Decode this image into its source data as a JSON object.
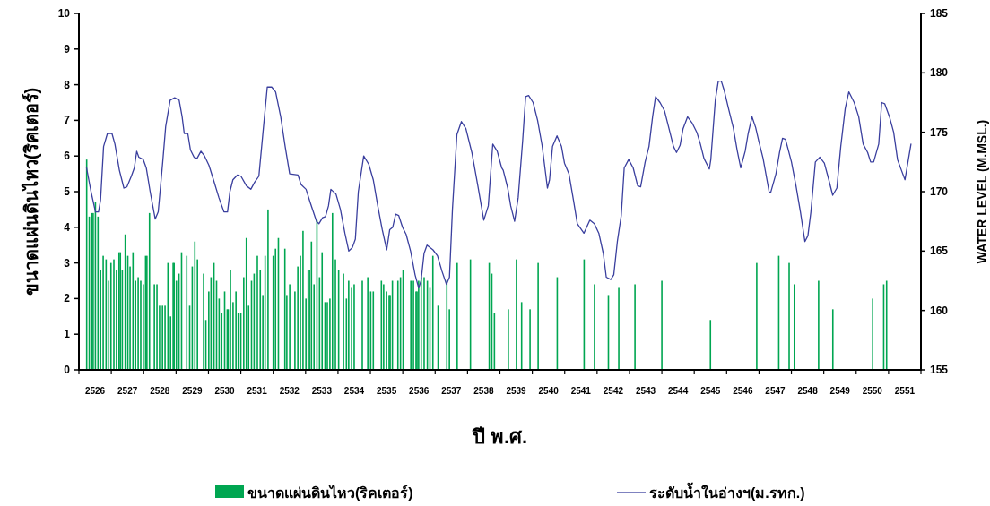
{
  "chart_data": {
    "type": "bar",
    "xlabel": "ปี พ.ศ.",
    "ylabel": "ขนาดแผ่นดินไหว(ริคเตอร์)",
    "y2label": "WATER LEVEL (M.MSL.)",
    "legend": "bottom",
    "xlim": [
      2525.5,
      2551.5
    ],
    "xticks": [
      {
        "value": 2525.5,
        "label": null
      },
      2526,
      {
        "value": 2526.5,
        "label": null
      },
      2527,
      {
        "value": 2527.5,
        "label": null
      },
      2528,
      {
        "value": 2528.5,
        "label": null
      },
      2529,
      {
        "value": 2529.5,
        "label": null
      },
      2530,
      {
        "value": 2530.5,
        "label": null
      },
      2531,
      {
        "value": 2531.5,
        "label": null
      },
      2532,
      {
        "value": 2532.5,
        "label": null
      },
      2533,
      {
        "value": 2533.5,
        "label": null
      },
      2534,
      {
        "value": 2534.5,
        "label": null
      },
      2535,
      {
        "value": 2535.5,
        "label": null
      },
      2536,
      {
        "value": 2536.5,
        "label": null
      },
      2537,
      {
        "value": 2537.5,
        "label": null
      },
      2538,
      {
        "value": 2538.5,
        "label": null
      },
      2539,
      {
        "value": 2539.5,
        "label": null
      },
      2540,
      {
        "value": 2540.5,
        "label": null
      },
      2541,
      {
        "value": 2541.5,
        "label": null
      },
      2542,
      {
        "value": 2542.5,
        "label": null
      },
      2543,
      {
        "value": 2543.5,
        "label": null
      },
      2544,
      {
        "value": 2544.5,
        "label": null
      },
      2545,
      {
        "value": 2545.5,
        "label": null
      },
      2546,
      {
        "value": 2546.5,
        "label": null
      },
      2547,
      {
        "value": 2547.5,
        "label": null
      },
      2548,
      {
        "value": 2548.5,
        "label": null
      },
      2549,
      {
        "value": 2549.5,
        "label": null
      },
      2550,
      {
        "value": 2550.5,
        "label": null
      },
      2551,
      {
        "value": 2551.5,
        "label": null
      }
    ],
    "ylim": [
      0,
      10
    ],
    "yticks": [
      0,
      1,
      2,
      3,
      4,
      5,
      6,
      7,
      8,
      9,
      10
    ],
    "y2lim": [
      155,
      185
    ],
    "y2ticks": [
      155,
      160,
      165,
      170,
      175,
      180,
      185
    ],
    "series": [
      {
        "name": "ขนาดแผ่นดินไหว(ริคเตอร์)",
        "color": "#00a651",
        "x": [
          2525.74,
          2525.82,
          2525.9,
          2525.94,
          2526.01,
          2526.09,
          2526.17,
          2526.25,
          2526.34,
          2526.42,
          2526.49,
          2526.58,
          2526.66,
          2526.74,
          2526.78,
          2526.84,
          2526.93,
          2527.01,
          2527.08,
          2527.17,
          2527.25,
          2527.33,
          2527.41,
          2527.49,
          2527.56,
          2527.6,
          2527.68,
          2527.83,
          2527.91,
          2527.99,
          2528.08,
          2528.16,
          2528.25,
          2528.33,
          2528.41,
          2528.44,
          2528.51,
          2528.59,
          2528.67,
          2528.83,
          2528.92,
          2529.0,
          2529.08,
          2529.16,
          2529.35,
          2529.42,
          2529.51,
          2529.58,
          2529.67,
          2529.75,
          2529.83,
          2529.91,
          2530.0,
          2530.08,
          2530.11,
          2530.18,
          2530.26,
          2530.35,
          2530.42,
          2530.5,
          2530.59,
          2530.67,
          2530.74,
          2530.83,
          2530.91,
          2531.01,
          2531.1,
          2531.18,
          2531.25,
          2531.34,
          2531.5,
          2531.57,
          2531.66,
          2531.86,
          2531.92,
          2532.01,
          2532.17,
          2532.26,
          2532.34,
          2532.42,
          2532.51,
          2532.58,
          2532.62,
          2532.68,
          2532.76,
          2532.85,
          2532.93,
          2533.01,
          2533.1,
          2533.17,
          2533.25,
          2533.33,
          2533.42,
          2533.52,
          2533.67,
          2533.76,
          2533.83,
          2533.92,
          2534.0,
          2534.25,
          2534.42,
          2534.51,
          2534.59,
          2534.84,
          2534.91,
          2535.0,
          2535.08,
          2535.11,
          2535.18,
          2535.35,
          2535.43,
          2535.51,
          2535.75,
          2535.83,
          2535.91,
          2535.94,
          2535.99,
          2536.07,
          2536.16,
          2536.26,
          2536.34,
          2536.43,
          2536.59,
          2536.86,
          2536.94,
          2537.18,
          2537.59,
          2538.17,
          2538.25,
          2538.33,
          2538.76,
          2539.01,
          2539.17,
          2539.43,
          2539.68,
          2540.27,
          2541.1,
          2541.42,
          2541.85,
          2542.17,
          2542.67,
          2543.5,
          2545.0,
          2546.43,
          2547.11,
          2547.43,
          2547.59,
          2548.34,
          2548.78,
          2550.01,
          2550.35,
          2550.44
        ],
        "values": [
          5.9,
          4.3,
          4.4,
          4.4,
          4.7,
          4.3,
          2.8,
          3.2,
          3.1,
          2.5,
          3.0,
          3.1,
          2.8,
          3.3,
          3.3,
          2.8,
          3.8,
          3.2,
          2.9,
          3.3,
          2.5,
          2.6,
          2.5,
          2.4,
          3.2,
          3.2,
          4.4,
          2.4,
          2.4,
          1.8,
          1.8,
          1.8,
          3.0,
          1.5,
          3.0,
          3.0,
          2.5,
          2.7,
          3.3,
          3.2,
          1.8,
          2.9,
          3.6,
          3.1,
          2.7,
          1.4,
          2.2,
          2.6,
          3.0,
          2.5,
          2.0,
          1.6,
          2.2,
          1.7,
          1.7,
          2.8,
          1.9,
          2.2,
          1.6,
          1.6,
          2.6,
          3.7,
          1.8,
          2.5,
          2.7,
          3.2,
          2.8,
          2.1,
          3.2,
          4.5,
          3.2,
          3.4,
          3.7,
          3.4,
          2.1,
          2.4,
          2.2,
          2.9,
          3.2,
          3.9,
          2.0,
          2.8,
          2.8,
          3.6,
          2.4,
          4.2,
          2.6,
          3.3,
          1.9,
          1.9,
          2.0,
          4.4,
          3.1,
          2.8,
          2.7,
          2.0,
          2.5,
          2.3,
          2.4,
          2.5,
          2.6,
          2.2,
          2.2,
          2.5,
          2.4,
          2.2,
          2.1,
          2.1,
          2.5,
          2.5,
          2.6,
          2.8,
          2.5,
          2.5,
          2.2,
          2.2,
          2.5,
          2.6,
          2.6,
          2.5,
          2.3,
          3.2,
          1.8,
          2.5,
          1.7,
          3.0,
          3.1,
          3.0,
          2.7,
          1.6,
          1.7,
          3.1,
          1.9,
          1.7,
          3.0,
          2.6,
          3.1,
          2.4,
          2.1,
          2.3,
          2.4,
          2.5,
          1.4,
          3.0,
          3.2,
          3.0,
          2.4,
          2.5,
          1.7,
          2.0,
          2.4,
          2.5
        ]
      },
      {
        "name": "ระดับน้ำในอ่างฯ(ม.รทก.)",
        "type": "line",
        "axis": "y2",
        "color": "#3a3f9e",
        "x": [
          2525.736,
          2525.874,
          2526.012,
          2526.105,
          2526.169,
          2526.262,
          2526.381,
          2526.52,
          2526.612,
          2526.75,
          2526.889,
          2526.981,
          2527.119,
          2527.211,
          2527.285,
          2527.35,
          2527.488,
          2527.58,
          2527.7,
          2527.857,
          2527.949,
          2528.088,
          2528.18,
          2528.318,
          2528.457,
          2528.595,
          2528.687,
          2528.752,
          2528.862,
          2528.945,
          2529.056,
          2529.148,
          2529.268,
          2529.379,
          2529.517,
          2529.655,
          2529.822,
          2529.978,
          2530.089,
          2530.163,
          2530.255,
          2530.393,
          2530.504,
          2530.67,
          2530.808,
          2530.928,
          2531.057,
          2531.177,
          2531.316,
          2531.454,
          2531.574,
          2531.731,
          2531.869,
          2532.008,
          2532.265,
          2532.358,
          2532.514,
          2532.653,
          2532.837,
          2532.911,
          2533.022,
          2533.114,
          2533.206,
          2533.28,
          2533.437,
          2533.575,
          2533.713,
          2533.833,
          2533.944,
          2534.036,
          2534.128,
          2534.294,
          2534.451,
          2534.589,
          2534.728,
          2534.866,
          2535.004,
          2535.097,
          2535.189,
          2535.281,
          2535.373,
          2535.493,
          2535.604,
          2535.742,
          2535.88,
          2535.991,
          2536.065,
          2536.157,
          2536.249,
          2536.434,
          2536.572,
          2536.711,
          2536.849,
          2536.942,
          2537.034,
          2537.172,
          2537.311,
          2537.449,
          2537.633,
          2537.818,
          2538.002,
          2538.141,
          2538.279,
          2538.417,
          2538.555,
          2538.602,
          2538.741,
          2538.833,
          2538.953,
          2539.064,
          2539.202,
          2539.294,
          2539.386,
          2539.525,
          2539.663,
          2539.801,
          2539.967,
          2540.032,
          2540.124,
          2540.262,
          2540.401,
          2540.493,
          2540.631,
          2540.77,
          2540.89,
          2541.093,
          2541.277,
          2541.415,
          2541.554,
          2541.692,
          2541.784,
          2541.923,
          2542.015,
          2542.126,
          2542.246,
          2542.338,
          2542.476,
          2542.615,
          2542.753,
          2542.845,
          2542.984,
          2543.103,
          2543.214,
          2543.306,
          2543.444,
          2543.583,
          2543.721,
          2543.86,
          2543.952,
          2544.062,
          2544.155,
          2544.293,
          2544.431,
          2544.579,
          2544.69,
          2544.8,
          2544.966,
          2545.012,
          2545.151,
          2545.243,
          2545.335,
          2545.427,
          2545.566,
          2545.704,
          2545.824,
          2545.935,
          2546.073,
          2546.165,
          2546.285,
          2546.396,
          2546.488,
          2546.626,
          2546.811,
          2546.857,
          2547.023,
          2547.134,
          2547.226,
          2547.318,
          2547.502,
          2547.641,
          2547.779,
          2547.917,
          2548.01,
          2548.102,
          2548.24,
          2548.379,
          2548.517,
          2548.655,
          2548.775,
          2548.904,
          2549.024,
          2549.162,
          2549.273,
          2549.439,
          2549.578,
          2549.716,
          2549.854,
          2549.947,
          2550.039,
          2550.196,
          2550.288,
          2550.38,
          2550.528,
          2550.657,
          2550.777,
          2550.897,
          2551.007,
          2551.118,
          2551.192
        ],
        "values": [
          172.0,
          170.0,
          168.3,
          168.3,
          169.3,
          173.8,
          174.9,
          174.9,
          174.0,
          171.8,
          170.3,
          170.4,
          171.3,
          172.0,
          173.4,
          172.9,
          172.7,
          172.0,
          170.0,
          167.7,
          168.3,
          172.5,
          175.5,
          177.7,
          177.9,
          177.7,
          176.3,
          174.9,
          174.9,
          173.5,
          172.9,
          172.8,
          173.4,
          173.0,
          172.2,
          171.0,
          169.5,
          168.3,
          168.3,
          170.0,
          171.0,
          171.4,
          171.3,
          170.5,
          170.2,
          170.8,
          171.3,
          174.8,
          178.8,
          178.8,
          178.4,
          176.3,
          173.8,
          171.5,
          171.4,
          170.6,
          170.2,
          169.0,
          167.5,
          167.3,
          167.8,
          167.9,
          168.8,
          170.2,
          169.8,
          168.5,
          166.5,
          165.0,
          165.3,
          166.0,
          170.0,
          173.0,
          172.3,
          171.0,
          168.8,
          166.8,
          165.1,
          166.8,
          167.0,
          168.1,
          168.0,
          167.0,
          166.4,
          165.0,
          163.0,
          161.9,
          162.5,
          164.8,
          165.5,
          165.1,
          164.6,
          163.3,
          162.2,
          162.8,
          168.5,
          174.8,
          175.9,
          175.3,
          173.3,
          170.5,
          167.6,
          168.8,
          174.0,
          173.4,
          172.0,
          171.8,
          170.3,
          168.8,
          167.5,
          169.5,
          174.3,
          178.0,
          178.1,
          177.5,
          176.0,
          173.9,
          170.3,
          171.0,
          173.8,
          174.7,
          173.8,
          172.4,
          171.5,
          169.3,
          167.3,
          166.5,
          167.6,
          167.3,
          166.5,
          164.8,
          162.8,
          162.6,
          163.0,
          165.8,
          168.0,
          172.0,
          172.7,
          172.0,
          170.5,
          170.4,
          172.5,
          173.8,
          176.3,
          178.0,
          177.5,
          176.8,
          175.3,
          173.8,
          173.3,
          173.9,
          175.3,
          176.3,
          175.8,
          175.0,
          174.0,
          172.8,
          171.9,
          172.7,
          177.7,
          179.3,
          179.3,
          178.5,
          176.9,
          175.4,
          173.5,
          172.0,
          173.4,
          174.9,
          176.3,
          175.4,
          174.3,
          172.8,
          170.0,
          169.9,
          171.5,
          173.3,
          174.5,
          174.4,
          172.5,
          170.5,
          168.3,
          165.8,
          166.3,
          168.3,
          172.5,
          172.9,
          172.4,
          171.0,
          169.7,
          170.3,
          173.8,
          177.0,
          178.4,
          177.5,
          176.3,
          174.0,
          173.3,
          172.5,
          172.5,
          174.0,
          177.5,
          177.4,
          176.3,
          175.0,
          172.7,
          171.8,
          171.0,
          172.8,
          174.0
        ]
      }
    ]
  }
}
